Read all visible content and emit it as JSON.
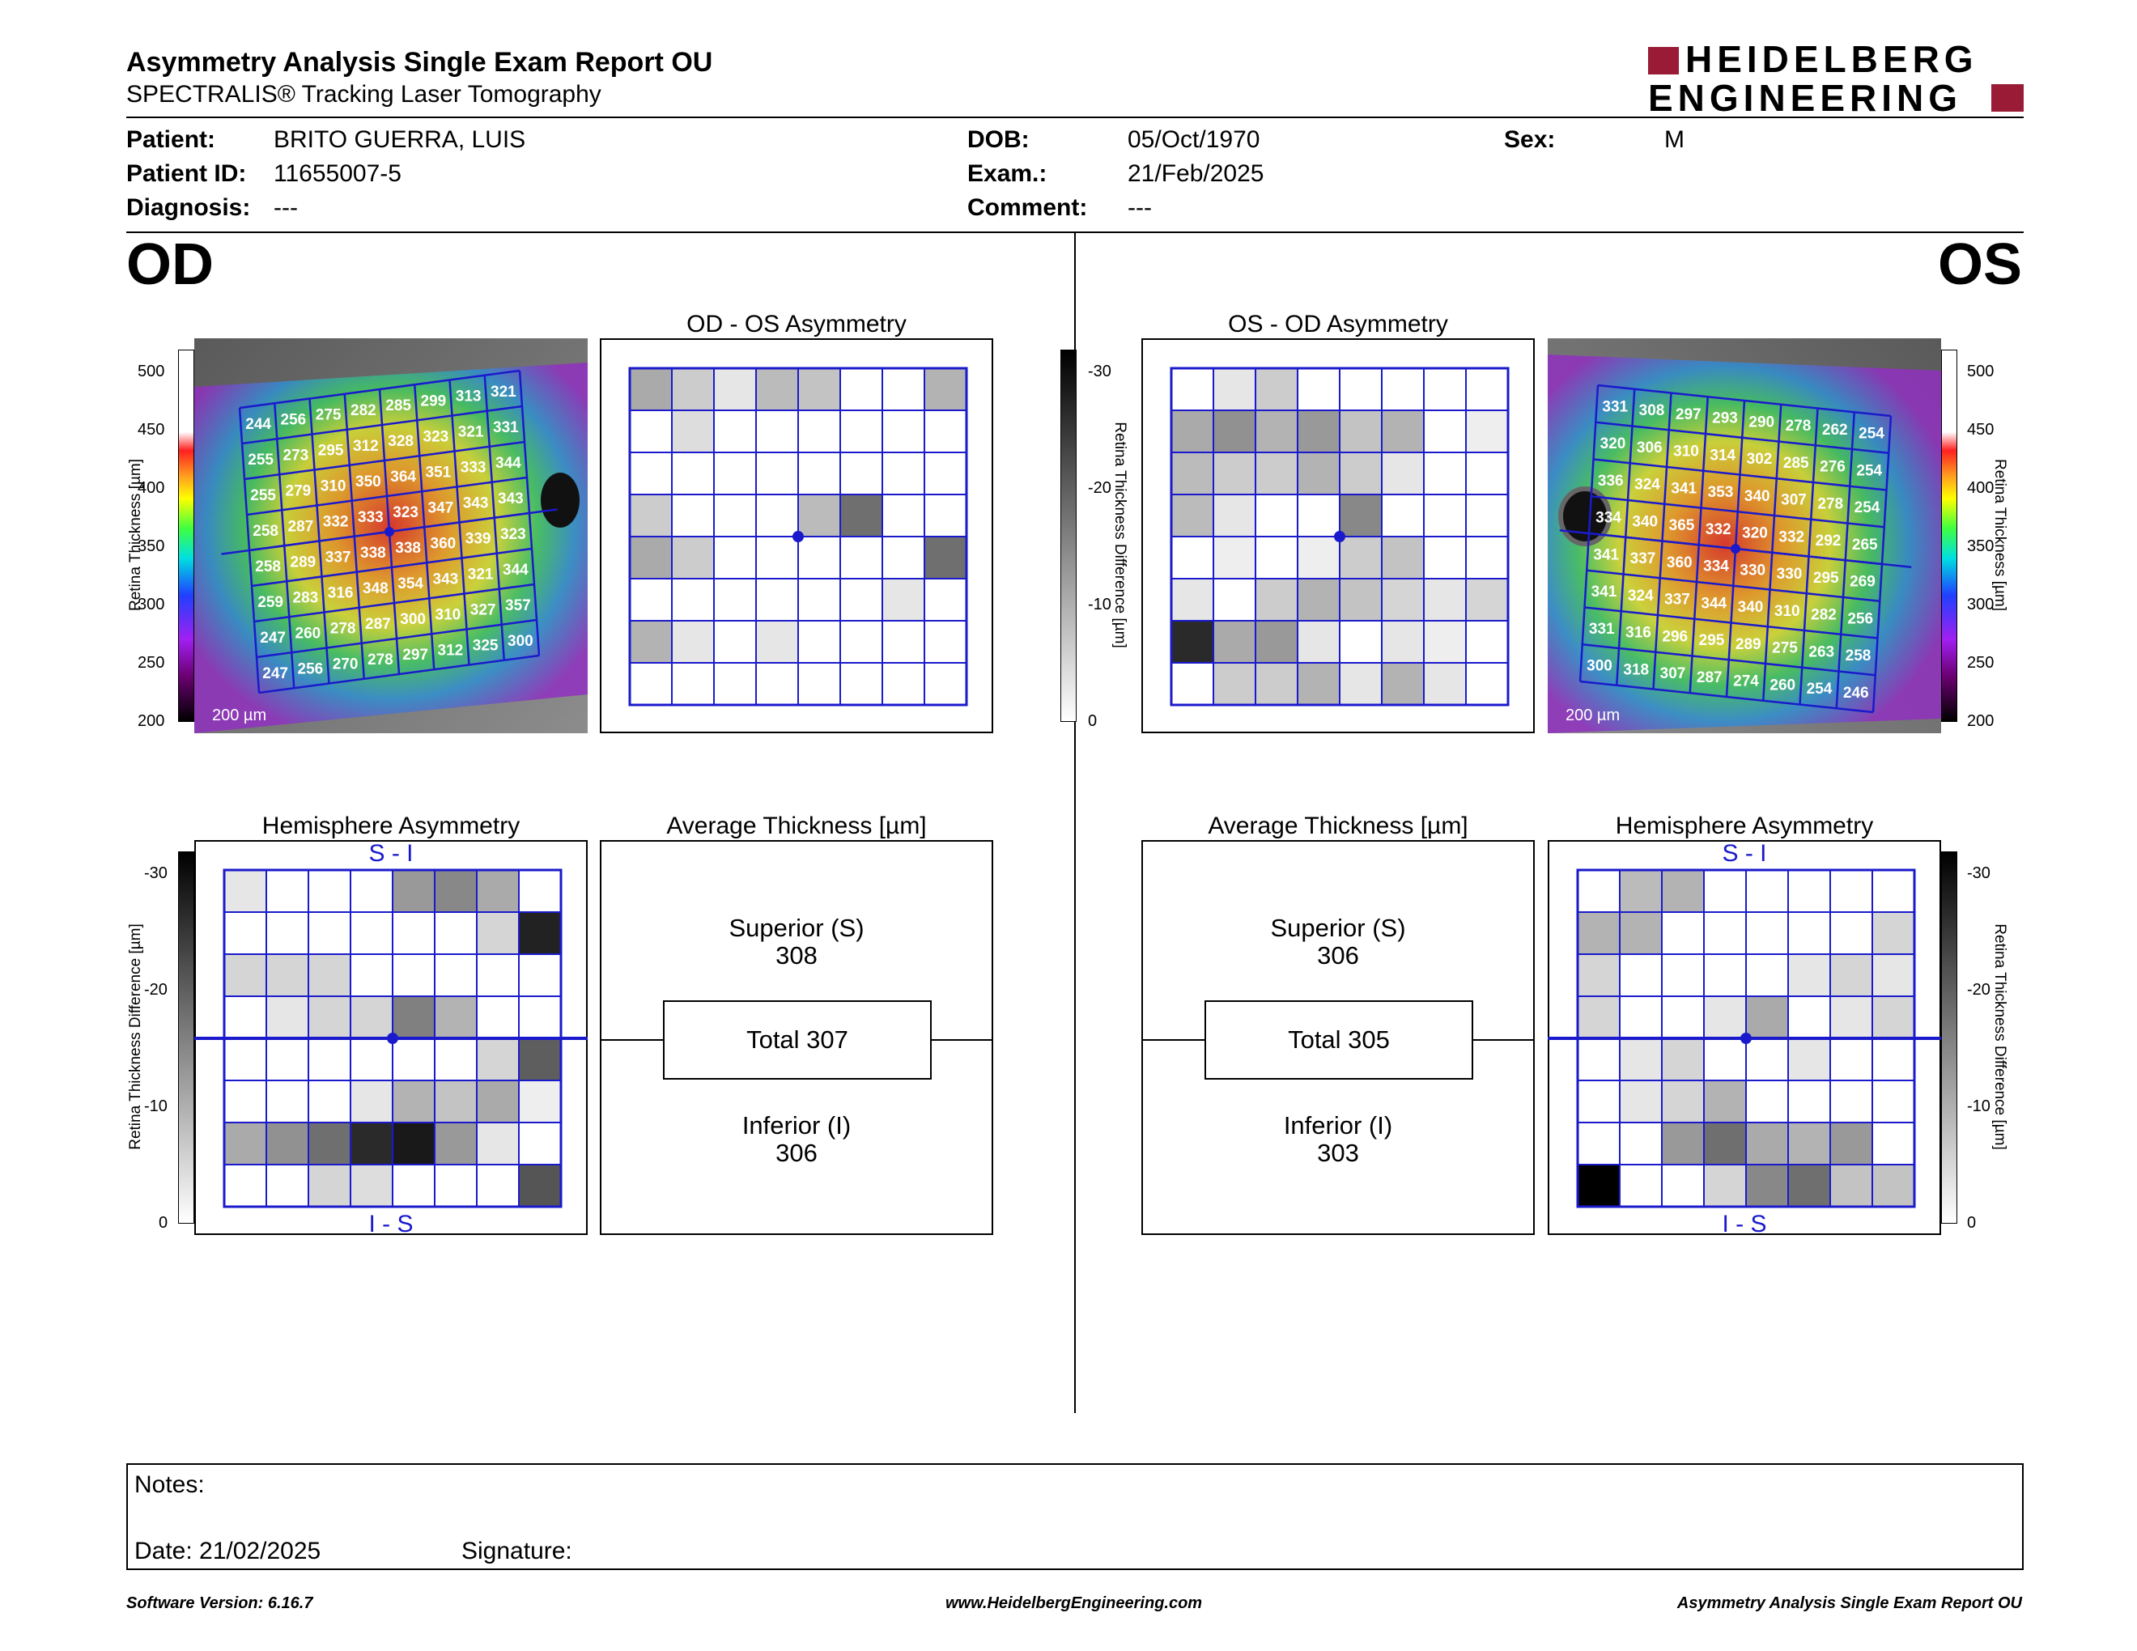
{
  "header": {
    "title": "Asymmetry Analysis Single Exam Report OU",
    "subtitle": "SPECTRALIS® Tracking Laser Tomography",
    "logo_line1": "HEIDELBERG",
    "logo_line2": "ENGINEERING"
  },
  "patient": {
    "patient_label": "Patient:",
    "patient_value": "BRITO GUERRA, LUIS",
    "id_label": "Patient ID:",
    "id_value": "11655007-5",
    "diagnosis_label": "Diagnosis:",
    "diagnosis_value": "---",
    "dob_label": "DOB:",
    "dob_value": "05/Oct/1970",
    "exam_label": "Exam.:",
    "exam_value": "21/Feb/2025",
    "comment_label": "Comment:",
    "comment_value": "---",
    "sex_label": "Sex:",
    "sex_value": "M"
  },
  "od": {
    "eye": "OD",
    "thickness_ticks": [
      "500",
      "450",
      "400",
      "350",
      "300",
      "250",
      "200"
    ],
    "thickness_axis_label": "Retina Thickness [µm]",
    "scale_label": "200 µm",
    "grid": [
      [
        244,
        256,
        275,
        282,
        285,
        299,
        313,
        321
      ],
      [
        255,
        273,
        295,
        312,
        328,
        323,
        321,
        331
      ],
      [
        255,
        279,
        310,
        350,
        364,
        351,
        333,
        344
      ],
      [
        258,
        287,
        332,
        333,
        323,
        347,
        343,
        343
      ],
      [
        258,
        289,
        337,
        338,
        338,
        360,
        339,
        323
      ],
      [
        259,
        283,
        316,
        348,
        354,
        343,
        321,
        344
      ],
      [
        247,
        260,
        278,
        287,
        300,
        310,
        327,
        357
      ],
      [
        247,
        256,
        270,
        278,
        297,
        312,
        325,
        300
      ]
    ],
    "asym_title": "OD - OS Asymmetry",
    "asym_grid": [
      [
        10,
        6,
        3,
        8,
        7,
        0,
        0,
        9
      ],
      [
        0,
        4,
        0,
        0,
        0,
        0,
        0,
        0
      ],
      [
        0,
        0,
        0,
        0,
        0,
        0,
        0,
        0
      ],
      [
        6,
        0,
        0,
        0,
        8,
        17,
        0,
        0
      ],
      [
        10,
        6,
        0,
        0,
        0,
        0,
        0,
        17
      ],
      [
        0,
        0,
        0,
        0,
        0,
        0,
        3,
        0
      ],
      [
        9,
        3,
        0,
        3,
        0,
        0,
        0,
        0
      ],
      [
        0,
        0,
        0,
        0,
        0,
        0,
        0,
        0
      ]
    ],
    "hemi_title": "Hemisphere Asymmetry",
    "hemi_top": "S - I",
    "hemi_bottom": "I - S",
    "hemi_grid": [
      [
        3,
        0,
        0,
        0,
        12,
        14,
        10,
        0
      ],
      [
        0,
        0,
        0,
        0,
        0,
        0,
        5,
        26
      ],
      [
        5,
        5,
        5,
        0,
        0,
        0,
        0,
        0
      ],
      [
        0,
        3,
        5,
        5,
        15,
        9,
        0,
        0
      ],
      [
        0,
        0,
        0,
        0,
        0,
        0,
        5,
        19
      ],
      [
        0,
        0,
        0,
        3,
        9,
        7,
        10,
        2
      ],
      [
        10,
        13,
        17,
        25,
        27,
        12,
        3,
        0
      ],
      [
        0,
        0,
        5,
        4,
        0,
        0,
        0,
        20
      ]
    ],
    "diff_ticks": [
      "-30",
      "-20",
      "-10",
      "0"
    ],
    "diff_axis_label": "Retina Thickness Difference [µm]",
    "avg_title": "Average Thickness [µm]",
    "superior_label": "Superior (S)",
    "superior_value": "308",
    "total_label": "Total 307",
    "inferior_label": "Inferior (I)",
    "inferior_value": "306"
  },
  "os": {
    "eye": "OS",
    "thickness_ticks": [
      "500",
      "450",
      "400",
      "350",
      "300",
      "250",
      "200"
    ],
    "thickness_axis_label": "Retina Thickness [µm]",
    "scale_label": "200 µm",
    "grid": [
      [
        331,
        308,
        297,
        293,
        290,
        278,
        262,
        254
      ],
      [
        320,
        306,
        310,
        314,
        302,
        285,
        276,
        254
      ],
      [
        336,
        324,
        341,
        353,
        340,
        307,
        278,
        254
      ],
      [
        334,
        340,
        365,
        332,
        320,
        332,
        292,
        265
      ],
      [
        341,
        337,
        360,
        334,
        330,
        330,
        295,
        269
      ],
      [
        341,
        324,
        337,
        344,
        340,
        310,
        282,
        256
      ],
      [
        331,
        316,
        296,
        295,
        289,
        275,
        263,
        258
      ],
      [
        300,
        318,
        307,
        287,
        274,
        260,
        254,
        246
      ]
    ],
    "asym_title": "OS - OD Asymmetry",
    "asym_grid": [
      [
        0,
        3,
        6,
        0,
        0,
        0,
        0,
        0
      ],
      [
        10,
        13,
        9,
        12,
        7,
        9,
        0,
        2
      ],
      [
        8,
        6,
        6,
        9,
        6,
        3,
        0,
        0
      ],
      [
        8,
        3,
        0,
        0,
        14,
        0,
        0,
        0
      ],
      [
        0,
        2,
        0,
        2,
        6,
        7,
        0,
        0
      ],
      [
        3,
        0,
        6,
        9,
        7,
        5,
        3,
        5
      ],
      [
        25,
        10,
        12,
        3,
        0,
        3,
        2,
        0
      ],
      [
        0,
        6,
        6,
        9,
        3,
        9,
        3,
        0
      ]
    ],
    "hemi_title": "Hemisphere Asymmetry",
    "hemi_top": "S - I",
    "hemi_bottom": "I - S",
    "hemi_grid": [
      [
        0,
        8,
        9,
        0,
        0,
        0,
        0,
        0
      ],
      [
        9,
        9,
        0,
        0,
        0,
        0,
        0,
        5
      ],
      [
        5,
        0,
        0,
        0,
        0,
        3,
        5,
        3
      ],
      [
        5,
        0,
        0,
        3,
        10,
        0,
        3,
        5
      ],
      [
        0,
        3,
        5,
        0,
        0,
        3,
        0,
        0
      ],
      [
        0,
        3,
        5,
        9,
        0,
        0,
        0,
        0
      ],
      [
        0,
        0,
        12,
        17,
        10,
        9,
        12,
        0
      ],
      [
        30,
        0,
        0,
        5,
        14,
        17,
        7,
        7
      ]
    ],
    "diff_ticks": [
      "-30",
      "-20",
      "-10",
      "0"
    ],
    "diff_axis_label": "Retina Thickness Difference [µm]",
    "avg_title": "Average Thickness [µm]",
    "superior_label": "Superior (S)",
    "superior_value": "306",
    "total_label": "Total 305",
    "inferior_label": "Inferior (I)",
    "inferior_value": "303"
  },
  "notes": {
    "notes_label": "Notes:",
    "date_label": "Date: 21/02/2025",
    "signature_label": "Signature:"
  },
  "footer": {
    "version": "Software Version: 6.16.7",
    "website": "www.HeidelbergEngineering.com",
    "report": "Asymmetry Analysis Single Exam Report OU"
  },
  "colors": {
    "grid_blue": "#1a1acc",
    "logo_red": "#9a1b35"
  }
}
